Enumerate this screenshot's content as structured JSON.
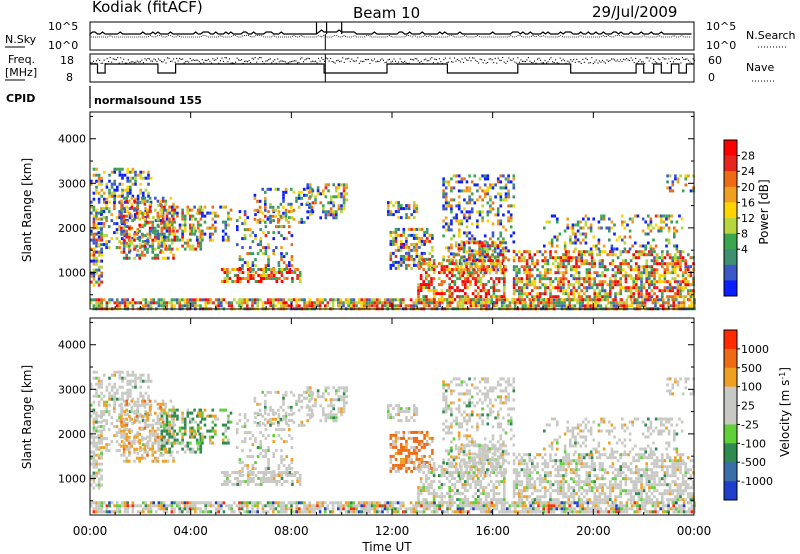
{
  "header": {
    "station": "Kodiak (fitACF)",
    "beam": "Beam 10",
    "date": "29/Jul/2009"
  },
  "strips": {
    "nsky_label": "N.Sky",
    "nsearch_label": "N.Search",
    "nsky_ticks": [
      "10^5",
      "10^0"
    ],
    "nsearch_ticks": [
      "10^5",
      "10^0"
    ],
    "freq_label_1": "Freq.",
    "freq_label_2": "[MHz]",
    "freq_ticks": [
      "18",
      "8"
    ],
    "nave_label": "Nave",
    "nave_ticks": [
      "60",
      "0"
    ],
    "cpid_label": "CPID",
    "cpid_value": "normalsound 155"
  },
  "chart_data": [
    {
      "type": "heatmap",
      "name": "power",
      "ylabel": "Slant Range [km]",
      "xlabel": "Time UT",
      "x_ticks": [
        "00:00",
        "04:00",
        "08:00",
        "12:00",
        "16:00",
        "20:00",
        "00:00"
      ],
      "x_range_hours": [
        0,
        24
      ],
      "y_ticks": [
        1000,
        2000,
        3000,
        4000
      ],
      "y_range_km": [
        180,
        4600
      ],
      "colorbar_label": "Power [dB]",
      "colorbar_ticks": [
        "28",
        "24",
        "20",
        "16",
        "12",
        "8",
        "4"
      ],
      "colorbar_colors": [
        "#0a1eff",
        "#3c57c8",
        "#3f8f72",
        "#3aa64f",
        "#b7d53c",
        "#ffd400",
        "#f0a020",
        "#ee6a14",
        "#e6251e",
        "#ff0000"
      ]
    },
    {
      "type": "heatmap",
      "name": "velocity",
      "ylabel": "Slant Range [km]",
      "xlabel": "Time UT",
      "x_ticks": [
        "00:00",
        "04:00",
        "08:00",
        "12:00",
        "16:00",
        "20:00",
        "00:00"
      ],
      "x_range_hours": [
        0,
        24
      ],
      "y_ticks": [
        1000,
        2000,
        3000,
        4000
      ],
      "y_range_km": [
        180,
        4600
      ],
      "colorbar_label": "Velocity [m s",
      "colorbar_label_sup": "-1",
      "colorbar_label_end": "]",
      "colorbar_ticks": [
        "1000",
        "500",
        "100",
        "25",
        "-25",
        "-100",
        "-500",
        "-1000"
      ],
      "colorbar_colors": [
        "#1d3fcc",
        "#3a6ea8",
        "#2e8a4f",
        "#5fd03a",
        "#c8c8c4",
        "#c8c8c4",
        "#f0a020",
        "#ee6a14",
        "#ff2a00"
      ]
    }
  ],
  "time_label": "Time UT"
}
